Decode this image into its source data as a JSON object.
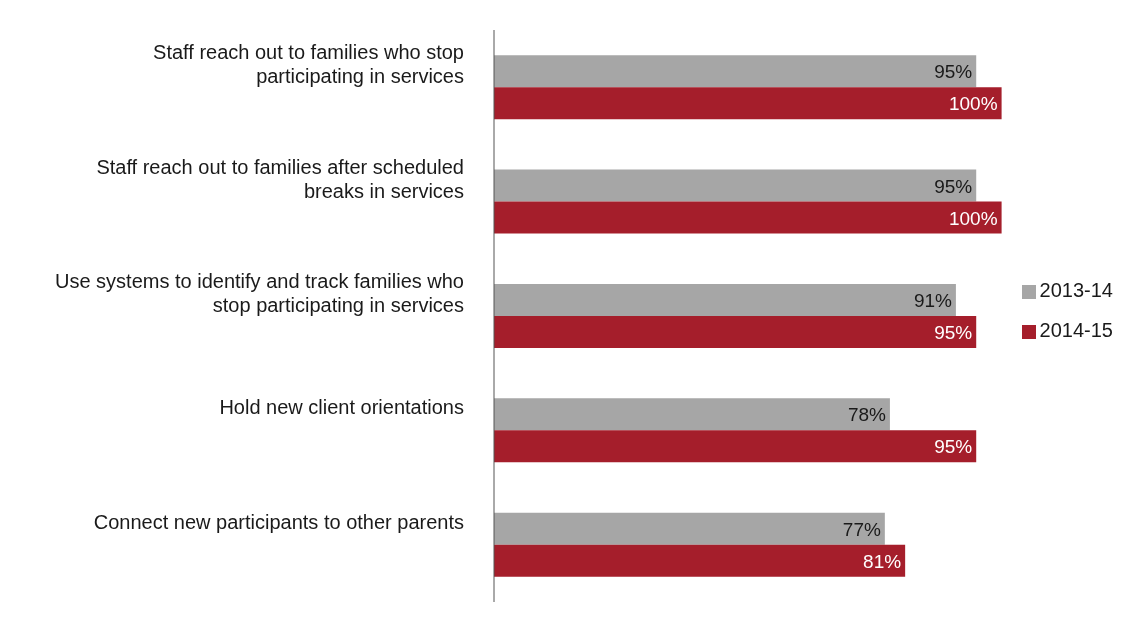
{
  "chart_data": {
    "type": "bar",
    "orientation": "horizontal",
    "categories": [
      "Staff reach out to families who stop participating in services",
      "Staff reach out to families after scheduled breaks in services",
      "Use systems to identify and track families who stop participating in services",
      "Hold new client orientations",
      "Connect new participants to other parents"
    ],
    "series": [
      {
        "name": "2013-14",
        "color": "#a6a6a6",
        "values": [
          95,
          95,
          91,
          78,
          77
        ],
        "value_labels": [
          "95%",
          "95%",
          "91%",
          "78%",
          "77%"
        ]
      },
      {
        "name": "2014-15",
        "color": "#a51e2b",
        "values": [
          100,
          100,
          95,
          95,
          81
        ],
        "value_labels": [
          "100%",
          "100%",
          "95%",
          "95%",
          "81%"
        ]
      }
    ],
    "legend": "right",
    "grid": false
  }
}
